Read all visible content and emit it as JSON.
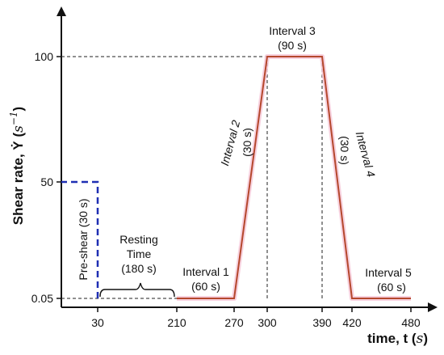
{
  "chart_data": {
    "type": "line",
    "title": "",
    "xlabel": "time, t",
    "xlabel_unit": "s",
    "ylabel": "Shear rate, Ẏ",
    "ylabel_unit": "s",
    "ylabel_unit_exponent": "−1",
    "x_ticks": [
      "30",
      "210",
      "270",
      "300",
      "390",
      "420",
      "480"
    ],
    "y_ticks": [
      "0.05",
      "50",
      "100"
    ],
    "series": [
      {
        "style": "dashed",
        "color": "#1f2fb3",
        "x": [
          30,
          30,
          0
        ],
        "y": [
          0.05,
          50,
          50
        ]
      },
      {
        "style": "solid",
        "color": "#b5472d",
        "x": [
          210,
          270,
          300,
          390,
          420,
          480
        ],
        "y": [
          0.05,
          0.05,
          100,
          100,
          0.05,
          0.05
        ]
      }
    ],
    "guides": [
      {
        "from": [
          0,
          100
        ],
        "to": [
          300,
          100
        ]
      },
      {
        "from": [
          0,
          0.05
        ],
        "to": [
          210,
          0.05
        ]
      },
      {
        "from": [
          300,
          0.05
        ],
        "to": [
          300,
          100
        ]
      },
      {
        "from": [
          390,
          0.05
        ],
        "to": [
          390,
          100
        ]
      }
    ],
    "annotations": {
      "preshear": "Pre-shear (30 s)",
      "resting_1": "Resting",
      "resting_2": "Time",
      "resting_3": "(180 s)",
      "int1_1": "Interval 1",
      "int1_2": "(60 s)",
      "int2_1": "Interval 2",
      "int2_2": "(30 s)",
      "int3_1": "Interval 3",
      "int3_2": "(90 s)",
      "int4_1": "Interval 4",
      "int4_2": "(30 s)",
      "int5_1": "Interval 5",
      "int5_2": "(60 s)"
    },
    "colors": {
      "preshear": "#1f2fb3",
      "profile": "#b5472d",
      "profile_glow": "#f6c9d8"
    }
  }
}
